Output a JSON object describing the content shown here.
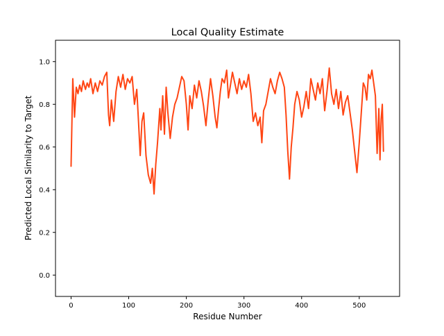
{
  "chart_data": {
    "type": "line",
    "title": "Local Quality Estimate",
    "xlabel": "Residue Number",
    "ylabel": "Predicted Local Similarity to Target",
    "xlim": [
      -27,
      570
    ],
    "ylim": [
      -0.1,
      1.1
    ],
    "xticks": [
      0,
      100,
      200,
      300,
      400,
      500
    ],
    "yticks": [
      0.0,
      0.2,
      0.4,
      0.6,
      0.8,
      1.0
    ],
    "xtick_labels": [
      "0",
      "100",
      "200",
      "300",
      "400",
      "500"
    ],
    "ytick_labels": [
      "0.0",
      "0.2",
      "0.4",
      "0.6",
      "0.8",
      "1.0"
    ],
    "grid": false,
    "series": [
      {
        "color": "#ff4513",
        "points": [
          [
            0,
            0.51
          ],
          [
            3,
            0.92
          ],
          [
            6,
            0.74
          ],
          [
            9,
            0.88
          ],
          [
            12,
            0.85
          ],
          [
            15,
            0.89
          ],
          [
            18,
            0.86
          ],
          [
            21,
            0.91
          ],
          [
            25,
            0.87
          ],
          [
            28,
            0.9
          ],
          [
            31,
            0.88
          ],
          [
            34,
            0.92
          ],
          [
            38,
            0.85
          ],
          [
            42,
            0.9
          ],
          [
            46,
            0.86
          ],
          [
            50,
            0.91
          ],
          [
            54,
            0.89
          ],
          [
            58,
            0.93
          ],
          [
            62,
            0.95
          ],
          [
            65,
            0.75
          ],
          [
            67,
            0.7
          ],
          [
            70,
            0.82
          ],
          [
            74,
            0.72
          ],
          [
            78,
            0.86
          ],
          [
            82,
            0.93
          ],
          [
            86,
            0.88
          ],
          [
            90,
            0.94
          ],
          [
            94,
            0.87
          ],
          [
            98,
            0.92
          ],
          [
            102,
            0.9
          ],
          [
            106,
            0.93
          ],
          [
            110,
            0.8
          ],
          [
            114,
            0.87
          ],
          [
            117,
            0.72
          ],
          [
            120,
            0.56
          ],
          [
            123,
            0.72
          ],
          [
            126,
            0.76
          ],
          [
            130,
            0.56
          ],
          [
            134,
            0.47
          ],
          [
            138,
            0.43
          ],
          [
            141,
            0.5
          ],
          [
            144,
            0.38
          ],
          [
            147,
            0.52
          ],
          [
            150,
            0.62
          ],
          [
            154,
            0.78
          ],
          [
            156,
            0.68
          ],
          [
            159,
            0.84
          ],
          [
            162,
            0.66
          ],
          [
            165,
            0.88
          ],
          [
            168,
            0.76
          ],
          [
            172,
            0.64
          ],
          [
            176,
            0.74
          ],
          [
            180,
            0.8
          ],
          [
            184,
            0.83
          ],
          [
            188,
            0.88
          ],
          [
            192,
            0.93
          ],
          [
            196,
            0.91
          ],
          [
            200,
            0.8
          ],
          [
            203,
            0.68
          ],
          [
            206,
            0.84
          ],
          [
            210,
            0.78
          ],
          [
            214,
            0.89
          ],
          [
            218,
            0.83
          ],
          [
            222,
            0.91
          ],
          [
            226,
            0.86
          ],
          [
            230,
            0.79
          ],
          [
            234,
            0.7
          ],
          [
            238,
            0.82
          ],
          [
            242,
            0.92
          ],
          [
            246,
            0.84
          ],
          [
            250,
            0.74
          ],
          [
            253,
            0.69
          ],
          [
            256,
            0.78
          ],
          [
            259,
            0.86
          ],
          [
            262,
            0.92
          ],
          [
            266,
            0.9
          ],
          [
            270,
            0.96
          ],
          [
            273,
            0.83
          ],
          [
            276,
            0.88
          ],
          [
            280,
            0.95
          ],
          [
            284,
            0.9
          ],
          [
            288,
            0.85
          ],
          [
            292,
            0.92
          ],
          [
            296,
            0.87
          ],
          [
            300,
            0.91
          ],
          [
            304,
            0.88
          ],
          [
            308,
            0.94
          ],
          [
            312,
            0.85
          ],
          [
            316,
            0.72
          ],
          [
            320,
            0.76
          ],
          [
            324,
            0.7
          ],
          [
            328,
            0.74
          ],
          [
            331,
            0.62
          ],
          [
            334,
            0.77
          ],
          [
            338,
            0.8
          ],
          [
            342,
            0.86
          ],
          [
            346,
            0.92
          ],
          [
            350,
            0.88
          ],
          [
            354,
            0.85
          ],
          [
            358,
            0.91
          ],
          [
            362,
            0.95
          ],
          [
            366,
            0.92
          ],
          [
            370,
            0.88
          ],
          [
            373,
            0.75
          ],
          [
            376,
            0.58
          ],
          [
            379,
            0.45
          ],
          [
            382,
            0.6
          ],
          [
            385,
            0.69
          ],
          [
            388,
            0.8
          ],
          [
            392,
            0.86
          ],
          [
            396,
            0.82
          ],
          [
            400,
            0.74
          ],
          [
            404,
            0.79
          ],
          [
            408,
            0.86
          ],
          [
            412,
            0.78
          ],
          [
            416,
            0.92
          ],
          [
            420,
            0.87
          ],
          [
            424,
            0.82
          ],
          [
            428,
            0.9
          ],
          [
            432,
            0.85
          ],
          [
            436,
            0.92
          ],
          [
            440,
            0.77
          ],
          [
            444,
            0.86
          ],
          [
            448,
            0.97
          ],
          [
            452,
            0.85
          ],
          [
            456,
            0.8
          ],
          [
            460,
            0.87
          ],
          [
            464,
            0.78
          ],
          [
            468,
            0.86
          ],
          [
            472,
            0.75
          ],
          [
            476,
            0.81
          ],
          [
            480,
            0.84
          ],
          [
            484,
            0.76
          ],
          [
            488,
            0.68
          ],
          [
            492,
            0.58
          ],
          [
            496,
            0.48
          ],
          [
            500,
            0.62
          ],
          [
            504,
            0.78
          ],
          [
            507,
            0.9
          ],
          [
            510,
            0.88
          ],
          [
            513,
            0.82
          ],
          [
            516,
            0.94
          ],
          [
            519,
            0.92
          ],
          [
            522,
            0.96
          ],
          [
            525,
            0.9
          ],
          [
            528,
            0.84
          ],
          [
            531,
            0.57
          ],
          [
            534,
            0.78
          ],
          [
            536,
            0.54
          ],
          [
            538,
            0.73
          ],
          [
            540,
            0.8
          ],
          [
            542,
            0.58
          ]
        ]
      }
    ]
  }
}
